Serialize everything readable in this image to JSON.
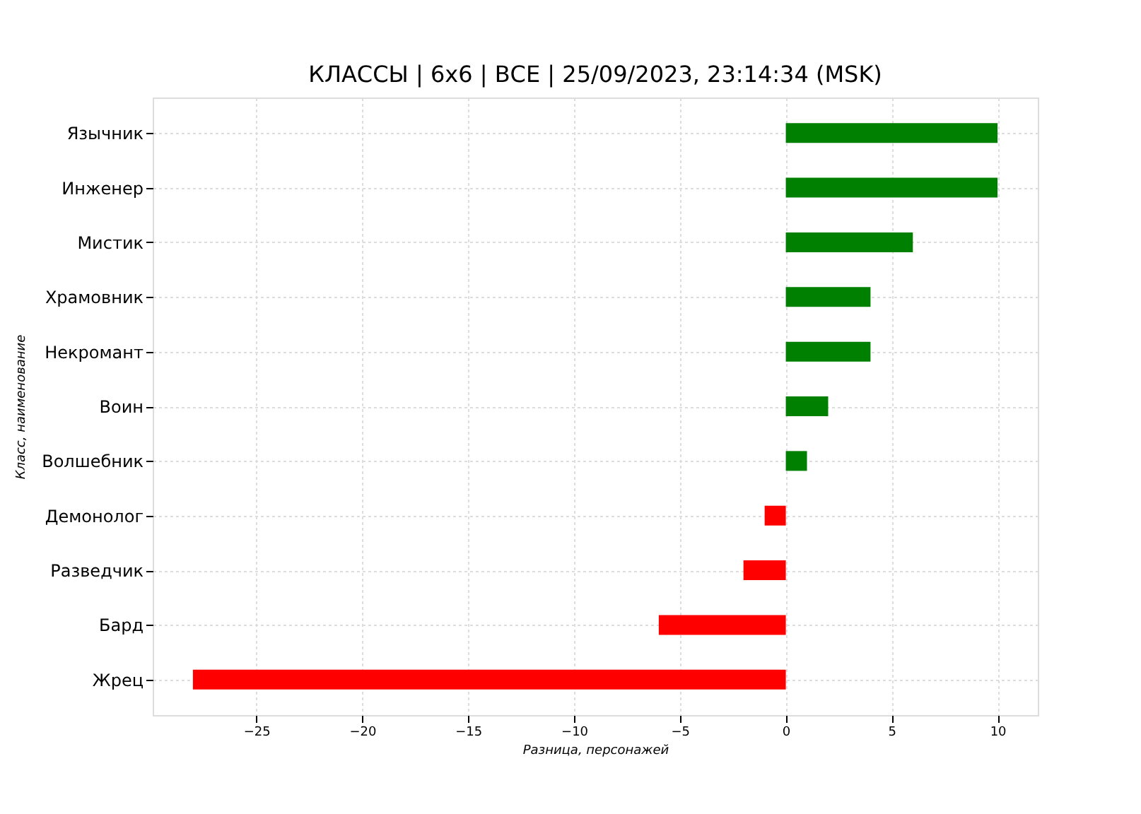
{
  "chart_data": {
    "type": "bar",
    "orientation": "horizontal",
    "title": "КЛАССЫ | 6х6 | ВСЕ | 25/09/2023, 23:14:34 (MSK)",
    "xlabel": "Разница, персонажей",
    "ylabel": "Класс, наименование",
    "categories": [
      "Язычник",
      "Инженер",
      "Мистик",
      "Храмовник",
      "Некромант",
      "Воин",
      "Волшебник",
      "Демонолог",
      "Разведчик",
      "Бард",
      "Жрец"
    ],
    "values": [
      10,
      10,
      6,
      4,
      4,
      2,
      1,
      -1,
      -2,
      -6,
      -28
    ],
    "colors": [
      "#008000",
      "#008000",
      "#008000",
      "#008000",
      "#008000",
      "#008000",
      "#008000",
      "#ff0000",
      "#ff0000",
      "#ff0000",
      "#ff0000"
    ],
    "xlim": [
      -29.9,
      11.9
    ],
    "xticks": [
      {
        "value": -25,
        "label": "−25"
      },
      {
        "value": -20,
        "label": "−20"
      },
      {
        "value": -15,
        "label": "−15"
      },
      {
        "value": -10,
        "label": "−10"
      },
      {
        "value": -5,
        "label": "−5"
      },
      0,
      5,
      10
    ],
    "grid": true
  }
}
